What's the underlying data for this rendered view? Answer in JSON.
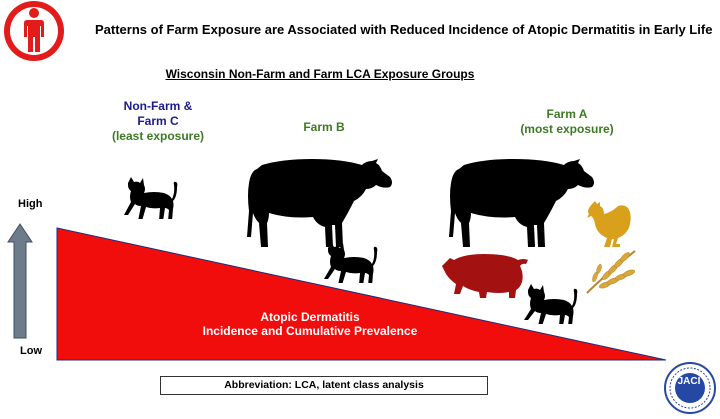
{
  "header": {
    "title": "Patterns of Farm Exposure are Associated with Reduced Incidence of Atopic Dermatitis in Early Life",
    "subtitle": "Wisconsin Non-Farm and Farm LCA Exposure Groups"
  },
  "groups": {
    "nonfarm": {
      "line1": "Non-Farm &",
      "line2": "Farm C",
      "line3": "(least exposure)"
    },
    "farm_b": {
      "label": "Farm B"
    },
    "farm_a": {
      "line1": "Farm A",
      "line2": "(most exposure)"
    }
  },
  "axis": {
    "high": "High",
    "low": "Low"
  },
  "triangle": {
    "line1": "Atopic Dermatitis",
    "line2": "Incidence and Cumulative Prevalence"
  },
  "footer": {
    "abbreviation": "Abbreviation: LCA, latent class analysis"
  },
  "journal_seal": {
    "text": "JACI",
    "ring_text": "The Journal of Allergy & Clinical Immunology"
  },
  "icons": [
    "human-figure-icon",
    "cat-icon",
    "cow-icon",
    "pig-icon",
    "rooster-icon",
    "wheat-icon",
    "up-arrow-icon"
  ],
  "colors": {
    "triangle_fill": "#f20d0d",
    "badge_red": "#e21b1b",
    "arrow_gray": "#6e7b8b",
    "nonfarm_text": "#1b1b8a",
    "farm_text": "#3e7a24",
    "pig": "#a31111",
    "rooster": "#d9a01c",
    "wheat": "#d8a83a",
    "seal_blue": "#2548a4"
  }
}
